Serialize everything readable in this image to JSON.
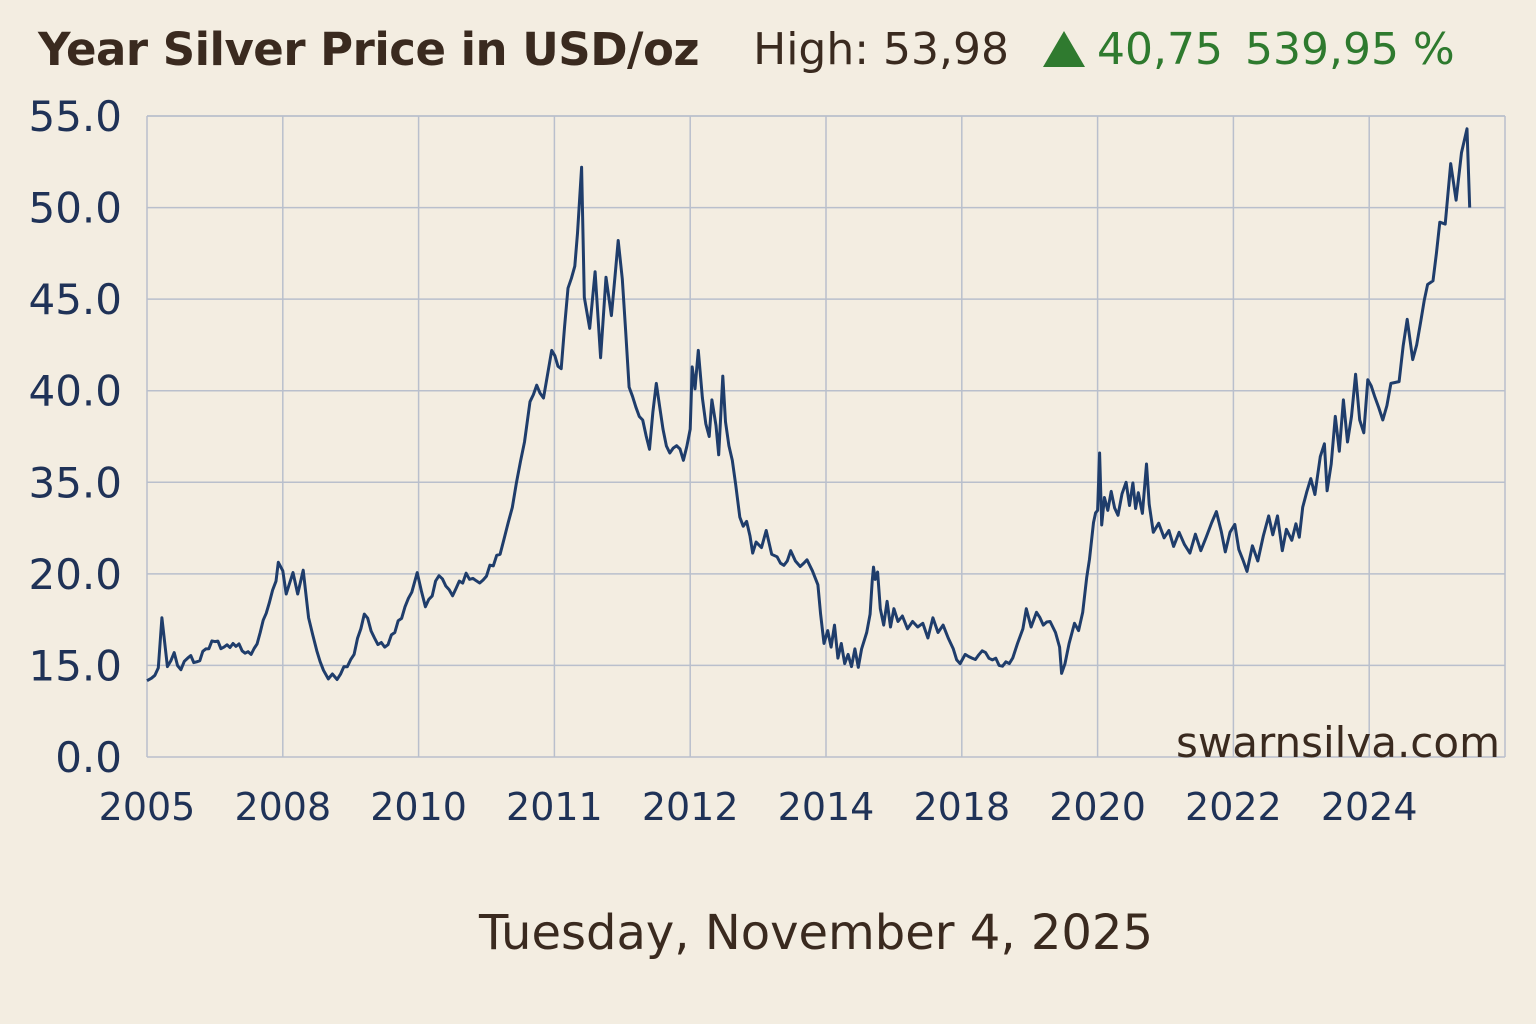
{
  "header": {
    "title": "Year Silver Price in USD/oz",
    "high_label": "High: 53,98",
    "change": "40,75",
    "change_pct": "539,95 %",
    "up_color": "#2f7a2f",
    "up_icon": "triangle-up-icon"
  },
  "footer": {
    "date": "Tuesday, November 4, 2025"
  },
  "watermark": "swarnsilva.com",
  "colors": {
    "background": "#f3ede1",
    "line": "#1f3d6b",
    "grid": "#b9bfcc",
    "text": "#3a2a1f",
    "axis_text": "#1f3257"
  },
  "chart_data": {
    "type": "line",
    "title": "Year Silver Price in USD/oz",
    "xlabel": "",
    "ylabel": "",
    "grid": true,
    "x_tick_labels": [
      "2005",
      "2008",
      "2010",
      "2011",
      "2012",
      "2014",
      "2018",
      "2020",
      "2022",
      "2024"
    ],
    "y_tick_labels": [
      "0.0",
      "15.0",
      "20.0",
      "35.0",
      "40.0",
      "45.0",
      "50.0",
      "55.0"
    ],
    "series": [
      {
        "values": [
          [
            2005.0,
            12.5
          ],
          [
            2005.1,
            12.9
          ],
          [
            2005.25,
            14.6
          ],
          [
            2005.33,
            17.6
          ],
          [
            2005.45,
            14.8
          ],
          [
            2005.6,
            15.7
          ],
          [
            2005.75,
            14.3
          ],
          [
            2005.9,
            15.4
          ],
          [
            2006.1,
            15.2
          ],
          [
            2006.3,
            15.9
          ],
          [
            2006.5,
            16.3
          ],
          [
            2006.7,
            16.0
          ],
          [
            2006.9,
            16.2
          ],
          [
            2007.1,
            15.8
          ],
          [
            2007.3,
            15.6
          ],
          [
            2007.5,
            16.8
          ],
          [
            2007.7,
            18.4
          ],
          [
            2007.85,
            19.6
          ],
          [
            2007.9,
            21.9
          ],
          [
            2008.0,
            20.5
          ],
          [
            2008.05,
            18.9
          ],
          [
            2008.15,
            20.2
          ],
          [
            2008.22,
            18.9
          ],
          [
            2008.3,
            20.6
          ],
          [
            2008.38,
            17.6
          ],
          [
            2008.5,
            15.8
          ],
          [
            2008.6,
            14.2
          ],
          [
            2008.67,
            12.8
          ],
          [
            2008.73,
            13.6
          ],
          [
            2008.8,
            12.7
          ],
          [
            2008.9,
            14.8
          ],
          [
            2009.05,
            15.6
          ],
          [
            2009.2,
            17.8
          ],
          [
            2009.35,
            16.5
          ],
          [
            2009.5,
            16.0
          ],
          [
            2009.65,
            16.8
          ],
          [
            2009.8,
            18.2
          ],
          [
            2009.9,
            19.0
          ],
          [
            2009.98,
            20.2
          ],
          [
            2010.05,
            18.2
          ],
          [
            2010.15,
            19.9
          ],
          [
            2010.25,
            18.8
          ],
          [
            2010.35,
            20.1
          ],
          [
            2010.45,
            19.5
          ],
          [
            2010.55,
            21.3
          ],
          [
            2010.6,
            23.2
          ],
          [
            2010.66,
            28.4
          ],
          [
            2010.72,
            34.9
          ],
          [
            2010.78,
            37.2
          ],
          [
            2010.82,
            39.4
          ],
          [
            2010.87,
            40.3
          ],
          [
            2010.92,
            39.6
          ],
          [
            2010.98,
            42.2
          ],
          [
            2011.05,
            41.2
          ],
          [
            2011.1,
            45.6
          ],
          [
            2011.15,
            46.8
          ],
          [
            2011.17,
            48.6
          ],
          [
            2011.2,
            52.2
          ],
          [
            2011.22,
            45.1
          ],
          [
            2011.26,
            43.4
          ],
          [
            2011.3,
            46.5
          ],
          [
            2011.34,
            41.8
          ],
          [
            2011.38,
            46.2
          ],
          [
            2011.42,
            44.1
          ],
          [
            2011.47,
            48.2
          ],
          [
            2011.5,
            46.1
          ],
          [
            2011.55,
            40.2
          ],
          [
            2011.6,
            39.1
          ],
          [
            2011.65,
            38.4
          ],
          [
            2011.7,
            36.8
          ],
          [
            2011.75,
            40.4
          ],
          [
            2011.8,
            37.9
          ],
          [
            2011.85,
            36.6
          ],
          [
            2011.9,
            37.0
          ],
          [
            2011.95,
            36.2
          ],
          [
            2012.0,
            37.9
          ],
          [
            2012.03,
            41.3
          ],
          [
            2012.07,
            40.1
          ],
          [
            2012.12,
            42.2
          ],
          [
            2012.18,
            39.6
          ],
          [
            2012.23,
            38.2
          ],
          [
            2012.28,
            37.5
          ],
          [
            2012.32,
            39.5
          ],
          [
            2012.38,
            38.1
          ],
          [
            2012.42,
            36.5
          ],
          [
            2012.48,
            40.8
          ],
          [
            2012.52,
            38.3
          ],
          [
            2012.57,
            37.0
          ],
          [
            2012.62,
            36.2
          ],
          [
            2012.67,
            34.6
          ],
          [
            2012.73,
            29.3
          ],
          [
            2012.78,
            27.8
          ],
          [
            2012.83,
            28.6
          ],
          [
            2012.88,
            26.2
          ],
          [
            2012.92,
            23.4
          ],
          [
            2012.97,
            25.2
          ],
          [
            2013.05,
            24.3
          ],
          [
            2013.12,
            27.1
          ],
          [
            2013.2,
            23.2
          ],
          [
            2013.28,
            22.8
          ],
          [
            2013.38,
            21.4
          ],
          [
            2013.48,
            23.8
          ],
          [
            2013.55,
            22.1
          ],
          [
            2013.62,
            21.2
          ],
          [
            2013.72,
            22.3
          ],
          [
            2013.8,
            20.5
          ],
          [
            2013.88,
            19.4
          ],
          [
            2013.92,
            17.8
          ],
          [
            2013.97,
            16.2
          ],
          [
            2014.05,
            16.9
          ],
          [
            2014.15,
            16.0
          ],
          [
            2014.25,
            17.2
          ],
          [
            2014.35,
            15.4
          ],
          [
            2014.45,
            16.2
          ],
          [
            2014.55,
            15.1
          ],
          [
            2014.65,
            15.6
          ],
          [
            2014.75,
            14.8
          ],
          [
            2014.85,
            15.9
          ],
          [
            2014.95,
            14.7
          ],
          [
            2015.05,
            15.9
          ],
          [
            2015.2,
            16.8
          ],
          [
            2015.3,
            17.8
          ],
          [
            2015.36,
            19.6
          ],
          [
            2015.4,
            21.1
          ],
          [
            2015.45,
            19.7
          ],
          [
            2015.52,
            20.3
          ],
          [
            2015.6,
            18.1
          ],
          [
            2015.7,
            17.2
          ],
          [
            2015.8,
            18.5
          ],
          [
            2015.9,
            17.1
          ],
          [
            2016.0,
            18.1
          ],
          [
            2016.12,
            17.4
          ],
          [
            2016.25,
            17.7
          ],
          [
            2016.4,
            17.0
          ],
          [
            2016.55,
            17.4
          ],
          [
            2016.7,
            17.1
          ],
          [
            2016.85,
            17.3
          ],
          [
            2017.0,
            16.5
          ],
          [
            2017.15,
            17.6
          ],
          [
            2017.3,
            16.8
          ],
          [
            2017.45,
            17.2
          ],
          [
            2017.6,
            16.5
          ],
          [
            2017.75,
            15.9
          ],
          [
            2017.85,
            15.3
          ],
          [
            2017.95,
            15.1
          ],
          [
            2018.05,
            15.6
          ],
          [
            2018.15,
            15.4
          ],
          [
            2018.3,
            15.8
          ],
          [
            2018.45,
            15.3
          ],
          [
            2018.55,
            15.0
          ],
          [
            2018.65,
            15.2
          ],
          [
            2018.75,
            15.4
          ],
          [
            2018.82,
            16.2
          ],
          [
            2018.9,
            17.0
          ],
          [
            2018.95,
            18.1
          ],
          [
            2019.02,
            17.1
          ],
          [
            2019.1,
            17.9
          ],
          [
            2019.2,
            17.2
          ],
          [
            2019.3,
            17.4
          ],
          [
            2019.38,
            16.8
          ],
          [
            2019.44,
            16.0
          ],
          [
            2019.47,
            13.7
          ],
          [
            2019.52,
            15.1
          ],
          [
            2019.58,
            16.2
          ],
          [
            2019.66,
            17.3
          ],
          [
            2019.72,
            16.9
          ],
          [
            2019.78,
            17.9
          ],
          [
            2019.84,
            19.8
          ],
          [
            2019.88,
            22.4
          ],
          [
            2019.94,
            28.4
          ],
          [
            2019.97,
            30.0
          ],
          [
            2020.0,
            30.4
          ],
          [
            2020.03,
            36.6
          ],
          [
            2020.06,
            28.0
          ],
          [
            2020.1,
            32.5
          ],
          [
            2020.15,
            30.4
          ],
          [
            2020.2,
            33.5
          ],
          [
            2020.25,
            30.8
          ],
          [
            2020.3,
            29.6
          ],
          [
            2020.36,
            33.1
          ],
          [
            2020.42,
            35.0
          ],
          [
            2020.47,
            31.2
          ],
          [
            2020.52,
            34.9
          ],
          [
            2020.56,
            30.7
          ],
          [
            2020.6,
            33.3
          ],
          [
            2020.66,
            29.9
          ],
          [
            2020.72,
            36.0
          ],
          [
            2020.76,
            31.4
          ],
          [
            2020.82,
            26.8
          ],
          [
            2020.9,
            28.3
          ],
          [
            2020.98,
            25.9
          ],
          [
            2021.05,
            27.1
          ],
          [
            2021.12,
            24.5
          ],
          [
            2021.2,
            26.8
          ],
          [
            2021.28,
            24.8
          ],
          [
            2021.36,
            23.4
          ],
          [
            2021.44,
            26.5
          ],
          [
            2021.52,
            23.8
          ],
          [
            2021.6,
            26.0
          ],
          [
            2021.68,
            28.4
          ],
          [
            2021.75,
            30.2
          ],
          [
            2021.82,
            27.0
          ],
          [
            2021.88,
            23.6
          ],
          [
            2021.95,
            26.8
          ],
          [
            2022.02,
            28.1
          ],
          [
            2022.08,
            24.0
          ],
          [
            2022.14,
            22.3
          ],
          [
            2022.2,
            20.4
          ],
          [
            2022.28,
            24.6
          ],
          [
            2022.36,
            22.1
          ],
          [
            2022.44,
            26.2
          ],
          [
            2022.52,
            29.5
          ],
          [
            2022.58,
            26.4
          ],
          [
            2022.65,
            29.5
          ],
          [
            2022.72,
            23.8
          ],
          [
            2022.78,
            27.3
          ],
          [
            2022.86,
            25.5
          ],
          [
            2022.92,
            28.2
          ],
          [
            2022.97,
            26.0
          ],
          [
            2023.02,
            30.9
          ],
          [
            2023.08,
            33.4
          ],
          [
            2023.14,
            35.2
          ],
          [
            2023.2,
            33.0
          ],
          [
            2023.28,
            36.4
          ],
          [
            2023.34,
            37.1
          ],
          [
            2023.38,
            33.6
          ],
          [
            2023.44,
            36.0
          ],
          [
            2023.5,
            38.6
          ],
          [
            2023.56,
            36.7
          ],
          [
            2023.62,
            39.5
          ],
          [
            2023.68,
            37.2
          ],
          [
            2023.74,
            38.6
          ],
          [
            2023.8,
            40.9
          ],
          [
            2023.86,
            38.4
          ],
          [
            2023.92,
            37.7
          ],
          [
            2023.98,
            40.6
          ],
          [
            2024.04,
            39.7
          ],
          [
            2024.1,
            38.4
          ],
          [
            2024.16,
            40.4
          ],
          [
            2024.22,
            40.5
          ],
          [
            2024.28,
            43.9
          ],
          [
            2024.32,
            41.7
          ],
          [
            2024.38,
            43.8
          ],
          [
            2024.43,
            45.8
          ],
          [
            2024.47,
            46.0
          ],
          [
            2024.52,
            49.2
          ],
          [
            2024.56,
            49.1
          ],
          [
            2024.6,
            52.4
          ],
          [
            2024.64,
            50.4
          ],
          [
            2024.68,
            53.0
          ],
          [
            2024.72,
            54.3
          ],
          [
            2024.74,
            50.0
          ]
        ]
      }
    ]
  }
}
